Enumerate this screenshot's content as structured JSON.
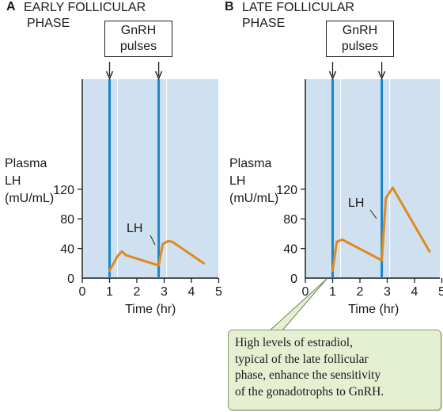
{
  "chart_data": [
    {
      "type": "line",
      "panel_letter": "A",
      "title_lines": [
        "EARLY FOLLICULAR",
        "PHASE"
      ],
      "box_label_lines": [
        "GnRH",
        "pulses"
      ],
      "ylabel_lines": [
        "Plasma",
        "LH",
        "(mU/mL)"
      ],
      "xlabel": "Time (hr)",
      "xlim": [
        0,
        5
      ],
      "ylim": [
        0,
        150
      ],
      "xticks": [
        "0",
        "1",
        "2",
        "3",
        "4",
        "5"
      ],
      "yticks": [
        "0",
        "40",
        "80",
        "120"
      ],
      "gnrh_pulses_hr": [
        1.0,
        2.8
      ],
      "series": [
        {
          "name": "LH",
          "color": "#e08a1e",
          "x": [
            1.0,
            1.3,
            1.45,
            1.6,
            2.8,
            2.95,
            3.15,
            3.3,
            4.45
          ],
          "y": [
            10,
            30,
            36,
            31,
            17,
            46,
            50,
            49,
            20
          ]
        }
      ],
      "line_label": "LH"
    },
    {
      "type": "line",
      "panel_letter": "B",
      "title_lines": [
        "LATE FOLLICULAR",
        "PHASE"
      ],
      "box_label_lines": [
        "GnRH",
        "pulses"
      ],
      "ylabel_lines": [
        "Plasma",
        "LH",
        "(mU/mL)"
      ],
      "xlabel": "Time (hr)",
      "xlim": [
        0,
        5
      ],
      "ylim": [
        0,
        150
      ],
      "xticks": [
        "0",
        "1",
        "2",
        "3",
        "4",
        "5"
      ],
      "yticks": [
        "0",
        "40",
        "80",
        "120"
      ],
      "gnrh_pulses_hr": [
        1.0,
        2.8
      ],
      "series": [
        {
          "name": "LH",
          "color": "#e08a1e",
          "x": [
            1.0,
            1.15,
            1.35,
            2.8,
            2.95,
            3.2,
            4.55
          ],
          "y": [
            10,
            49,
            52,
            24,
            108,
            122,
            36
          ]
        }
      ],
      "line_label": "LH"
    }
  ],
  "note": {
    "lines": [
      "High levels of estradiol,",
      "typical of the late follicular",
      "phase, enhance the sensitivity",
      "of the gonadotrophs to GnRH."
    ]
  },
  "colors": {
    "plot_background": "#cfe0f1",
    "pulse_line": "#1a86c8",
    "lh_line": "#e08a1e",
    "note_background": "#e5efd2"
  }
}
